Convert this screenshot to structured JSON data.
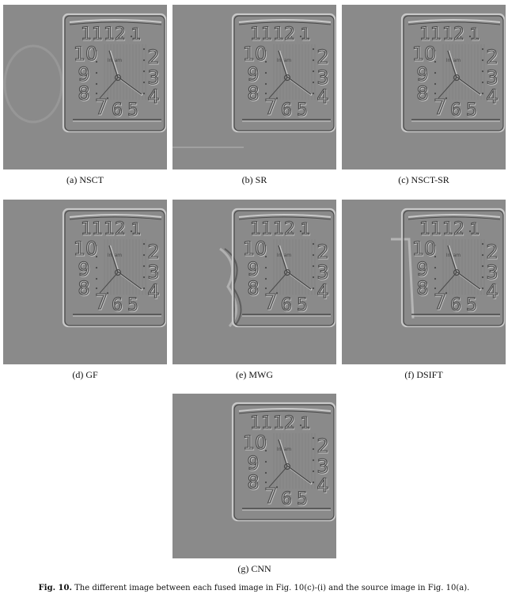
{
  "panels": [
    {
      "id": "a",
      "caption": "(a) NSCT",
      "clock_text": "Insam"
    },
    {
      "id": "b",
      "caption": "(b) SR",
      "clock_text": "Insam"
    },
    {
      "id": "c",
      "caption": "(c) NSCT-SR",
      "clock_text": "Insam"
    },
    {
      "id": "d",
      "caption": "(d) GF",
      "clock_text": "Insam"
    },
    {
      "id": "e",
      "caption": "(e) MWG",
      "clock_text": "Insam"
    },
    {
      "id": "f",
      "caption": "(f) DSIFT",
      "clock_text": "Insam"
    },
    {
      "id": "g",
      "caption": "(g) CNN",
      "clock_text": "Insam"
    }
  ],
  "figure": {
    "label": "Fig. 10.",
    "caption": " The different image between each fused image in Fig. 10(c)-(i) and the source image in Fig. 10(a)."
  },
  "colors": {
    "background_gray": "#8a8a8a",
    "edge_light": "#c9c9c9",
    "edge_dark": "#4a4a4a"
  }
}
